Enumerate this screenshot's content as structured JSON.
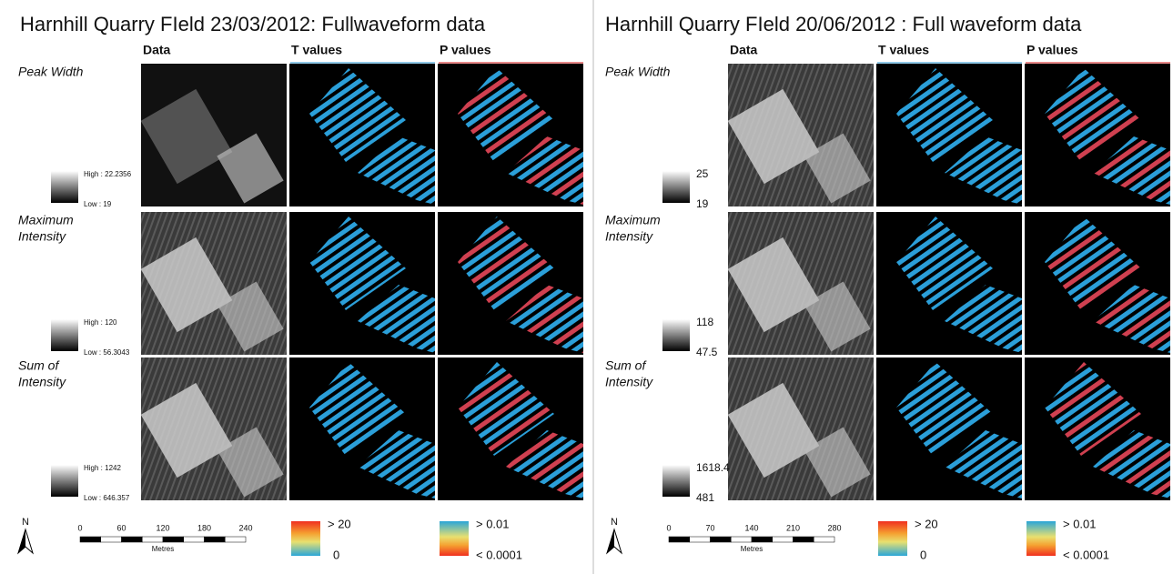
{
  "panels": [
    {
      "title": "Harnhill Quarry FIeld 23/03/2012: Fullwaveform data",
      "columns": [
        "Data",
        "T values",
        "P values"
      ],
      "rows": [
        {
          "label": [
            "Peak Width"
          ],
          "high": "High : 22.2356",
          "low": "Low : 19"
        },
        {
          "label": [
            "Maximum",
            "Intensity"
          ],
          "high": "High : 120",
          "low": "Low : 56.3043"
        },
        {
          "label": [
            "Sum of",
            "Intensity"
          ],
          "high": "High : 1242",
          "low": "Low : 646.357"
        }
      ],
      "north": "N",
      "scale_ticks": [
        0,
        60,
        120,
        180,
        240
      ],
      "scale_unit": "Metres",
      "t_legend": [
        "> 20",
        "0"
      ],
      "p_legend": [
        "> 0.01",
        "< 0.0001"
      ]
    },
    {
      "title": "Harnhill Quarry FIeld 20/06/2012 : Full waveform data",
      "columns": [
        "Data",
        "T values",
        "P values"
      ],
      "rows": [
        {
          "label": [
            "Peak Width"
          ],
          "high": "25",
          "low": "19"
        },
        {
          "label": [
            "Maximum",
            "Intensity"
          ],
          "high": "118",
          "low": "47.5"
        },
        {
          "label": [
            "Sum of",
            "Intensity"
          ],
          "high": "1618.4",
          "low": "481"
        }
      ],
      "north": "N",
      "scale_ticks": [
        0,
        70,
        140,
        210,
        280
      ],
      "scale_unit": "Metres",
      "t_legend": [
        "> 20",
        "0"
      ],
      "p_legend": [
        "> 0.01",
        "< 0.0001"
      ]
    }
  ]
}
